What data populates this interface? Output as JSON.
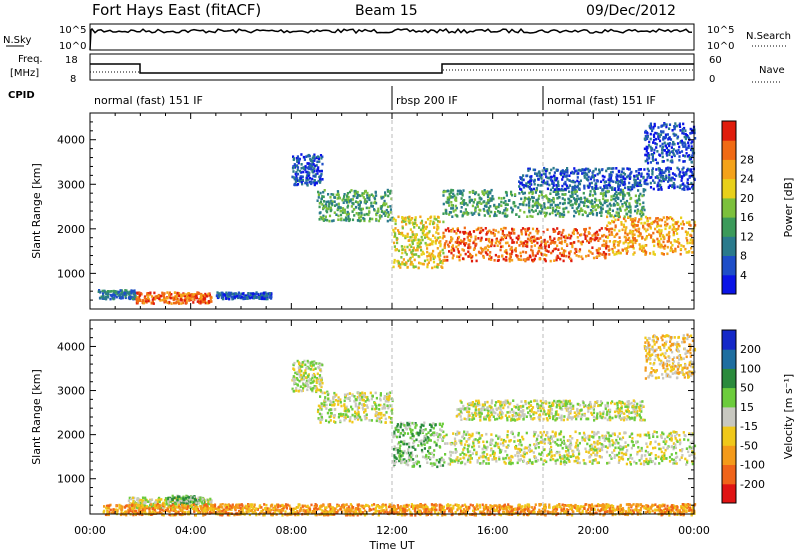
{
  "header": {
    "station": "Fort Hays East (fitACF)",
    "beam": "Beam 15",
    "date": "09/Dec/2012"
  },
  "top_panels": {
    "nsky_label": "N.Sky",
    "nsky_ticks": [
      "10^5",
      "10^0"
    ],
    "nsearch_label": "N.Search",
    "nsearch_ticks": [
      "10^5",
      "10^0"
    ],
    "freq_label_1": "Freq.",
    "freq_label_2": "[MHz]",
    "freq_ticks": [
      "18",
      "8"
    ],
    "nave_label": "Nave",
    "nave_ticks": [
      "60",
      "0"
    ],
    "cpid_label": "CPID",
    "cpid_segments": [
      {
        "text": "normal (fast) 151 IF",
        "start_hour": 0
      },
      {
        "text": "rbsp 200 IF",
        "start_hour": 12
      },
      {
        "text": "normal (fast) 151 IF",
        "start_hour": 18
      }
    ]
  },
  "chart_data": [
    {
      "type": "heatmap",
      "name": "power",
      "ylabel": "Slant Range [km]",
      "ylim": [
        200,
        4600
      ],
      "yticks": [
        1000,
        2000,
        3000,
        4000
      ],
      "xlim": [
        0,
        24
      ],
      "colorbar_label": "Power [dB]",
      "colorbar_ticks": [
        "4",
        "8",
        "12",
        "16",
        "20",
        "24",
        "28"
      ],
      "colors": [
        "#0a14e6",
        "#1e4ec8",
        "#2a7a8c",
        "#3b9a5a",
        "#7cc03c",
        "#e8d01a",
        "#f4a21a",
        "#f06a14",
        "#e01c0c"
      ],
      "echo_bands": [
        {
          "x0": 0.3,
          "x1": 1.8,
          "y0": 450,
          "y1": 650,
          "level": 2
        },
        {
          "x0": 1.8,
          "x1": 4.8,
          "y0": 350,
          "y1": 600,
          "level": 7
        },
        {
          "x0": 5.0,
          "x1": 7.2,
          "y0": 450,
          "y1": 600,
          "level": 1
        },
        {
          "x0": 8.0,
          "x1": 9.2,
          "y0": 3000,
          "y1": 3700,
          "level": 1
        },
        {
          "x0": 9.0,
          "x1": 12.0,
          "y0": 2200,
          "y1": 2900,
          "level": 3
        },
        {
          "x0": 12.0,
          "x1": 14.0,
          "y0": 1150,
          "y1": 2300,
          "level": 5
        },
        {
          "x0": 14.0,
          "x1": 20.5,
          "y0": 1300,
          "y1": 2050,
          "level": 7
        },
        {
          "x0": 20.5,
          "x1": 24.0,
          "y0": 1450,
          "y1": 2300,
          "level": 6
        },
        {
          "x0": 14.0,
          "x1": 22.0,
          "y0": 2300,
          "y1": 2900,
          "level": 3
        },
        {
          "x0": 17.0,
          "x1": 24.0,
          "y0": 2900,
          "y1": 3400,
          "level": 1
        },
        {
          "x0": 22.0,
          "x1": 24.0,
          "y0": 3500,
          "y1": 4400,
          "level": 1
        }
      ]
    },
    {
      "type": "heatmap",
      "name": "velocity",
      "ylabel": "Slant Range [km]",
      "ylim": [
        200,
        4600
      ],
      "yticks": [
        1000,
        2000,
        3000,
        4000
      ],
      "xlim": [
        0,
        24
      ],
      "xticks": [
        "00:00",
        "04:00",
        "08:00",
        "12:00",
        "16:00",
        "20:00",
        "00:00"
      ],
      "xlabel": "Time UT",
      "colorbar_label": "Velocity [m s⁻¹]",
      "colorbar_ticks": [
        "200",
        "100",
        "50",
        "15",
        "-15",
        "-50",
        "-100",
        "-200"
      ],
      "colors": [
        "#1428c8",
        "#1e6ea0",
        "#2a8a3c",
        "#6ccc3c",
        "#c8c8c0",
        "#f0c81a",
        "#f49a1a",
        "#f0641a",
        "#e01414"
      ],
      "echo_bands": [
        {
          "x0": 1.5,
          "x1": 4.8,
          "y0": 350,
          "y1": 600,
          "level": 4
        },
        {
          "x0": 3.0,
          "x1": 4.5,
          "y0": 450,
          "y1": 650,
          "level": 3
        },
        {
          "x0": 0.5,
          "x1": 24.0,
          "y0": 200,
          "y1": 450,
          "level": 6
        },
        {
          "x0": 8.0,
          "x1": 9.2,
          "y0": 3000,
          "y1": 3700,
          "level": 4
        },
        {
          "x0": 9.0,
          "x1": 12.0,
          "y0": 2300,
          "y1": 3000,
          "level": 4
        },
        {
          "x0": 12.0,
          "x1": 14.0,
          "y0": 1300,
          "y1": 2300,
          "level": 3
        },
        {
          "x0": 14.0,
          "x1": 24.0,
          "y0": 1350,
          "y1": 2100,
          "level": 4
        },
        {
          "x0": 14.5,
          "x1": 22.0,
          "y0": 2350,
          "y1": 2800,
          "level": 4
        },
        {
          "x0": 22.0,
          "x1": 24.0,
          "y0": 3300,
          "y1": 4300,
          "level": 5
        }
      ]
    }
  ]
}
